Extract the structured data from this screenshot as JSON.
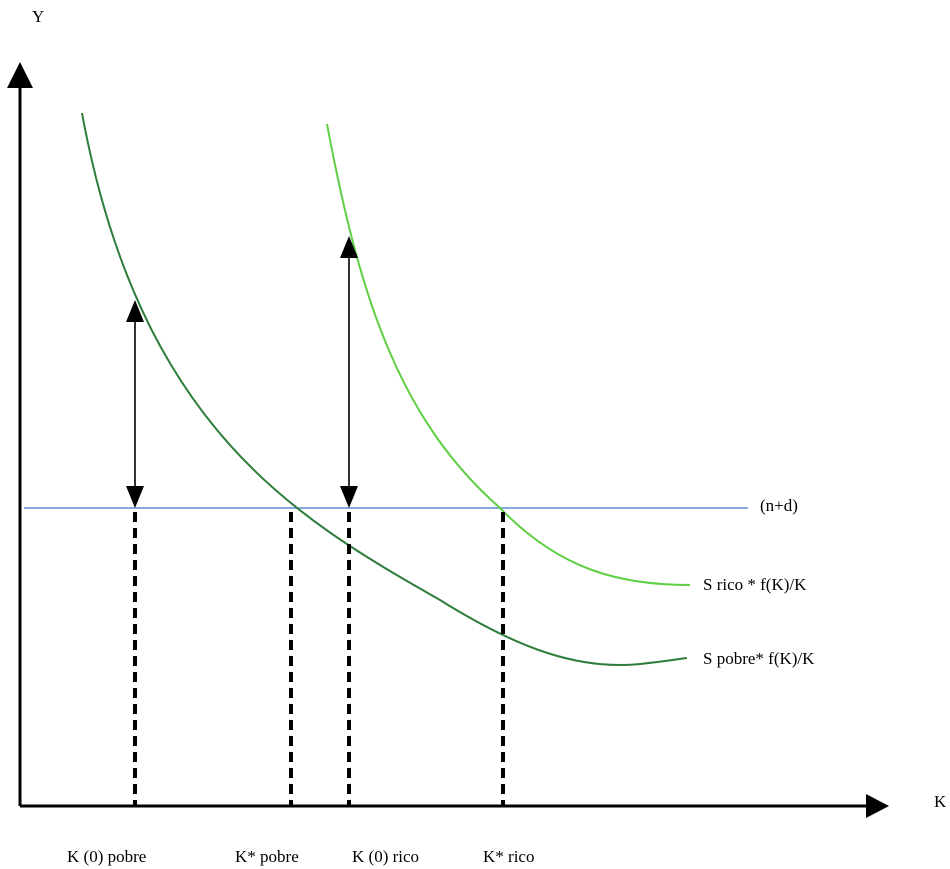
{
  "axes": {
    "y_label": "Y",
    "x_label": "K"
  },
  "lines": {
    "horizontal_label": "(n+d)",
    "horizontal_color": "#5b8fd0"
  },
  "curves": {
    "rich_label": "S rico * f(K)/K",
    "rich_color": "#5fcf45",
    "poor_label": "S pobre* f(K)/K",
    "poor_color": "#2e7d3a"
  },
  "x_ticks": {
    "k0_poor": "K (0) pobre",
    "kstar_poor": "K* pobre",
    "k0_rich": "K (0) rico",
    "kstar_rich": "K* rico"
  }
}
